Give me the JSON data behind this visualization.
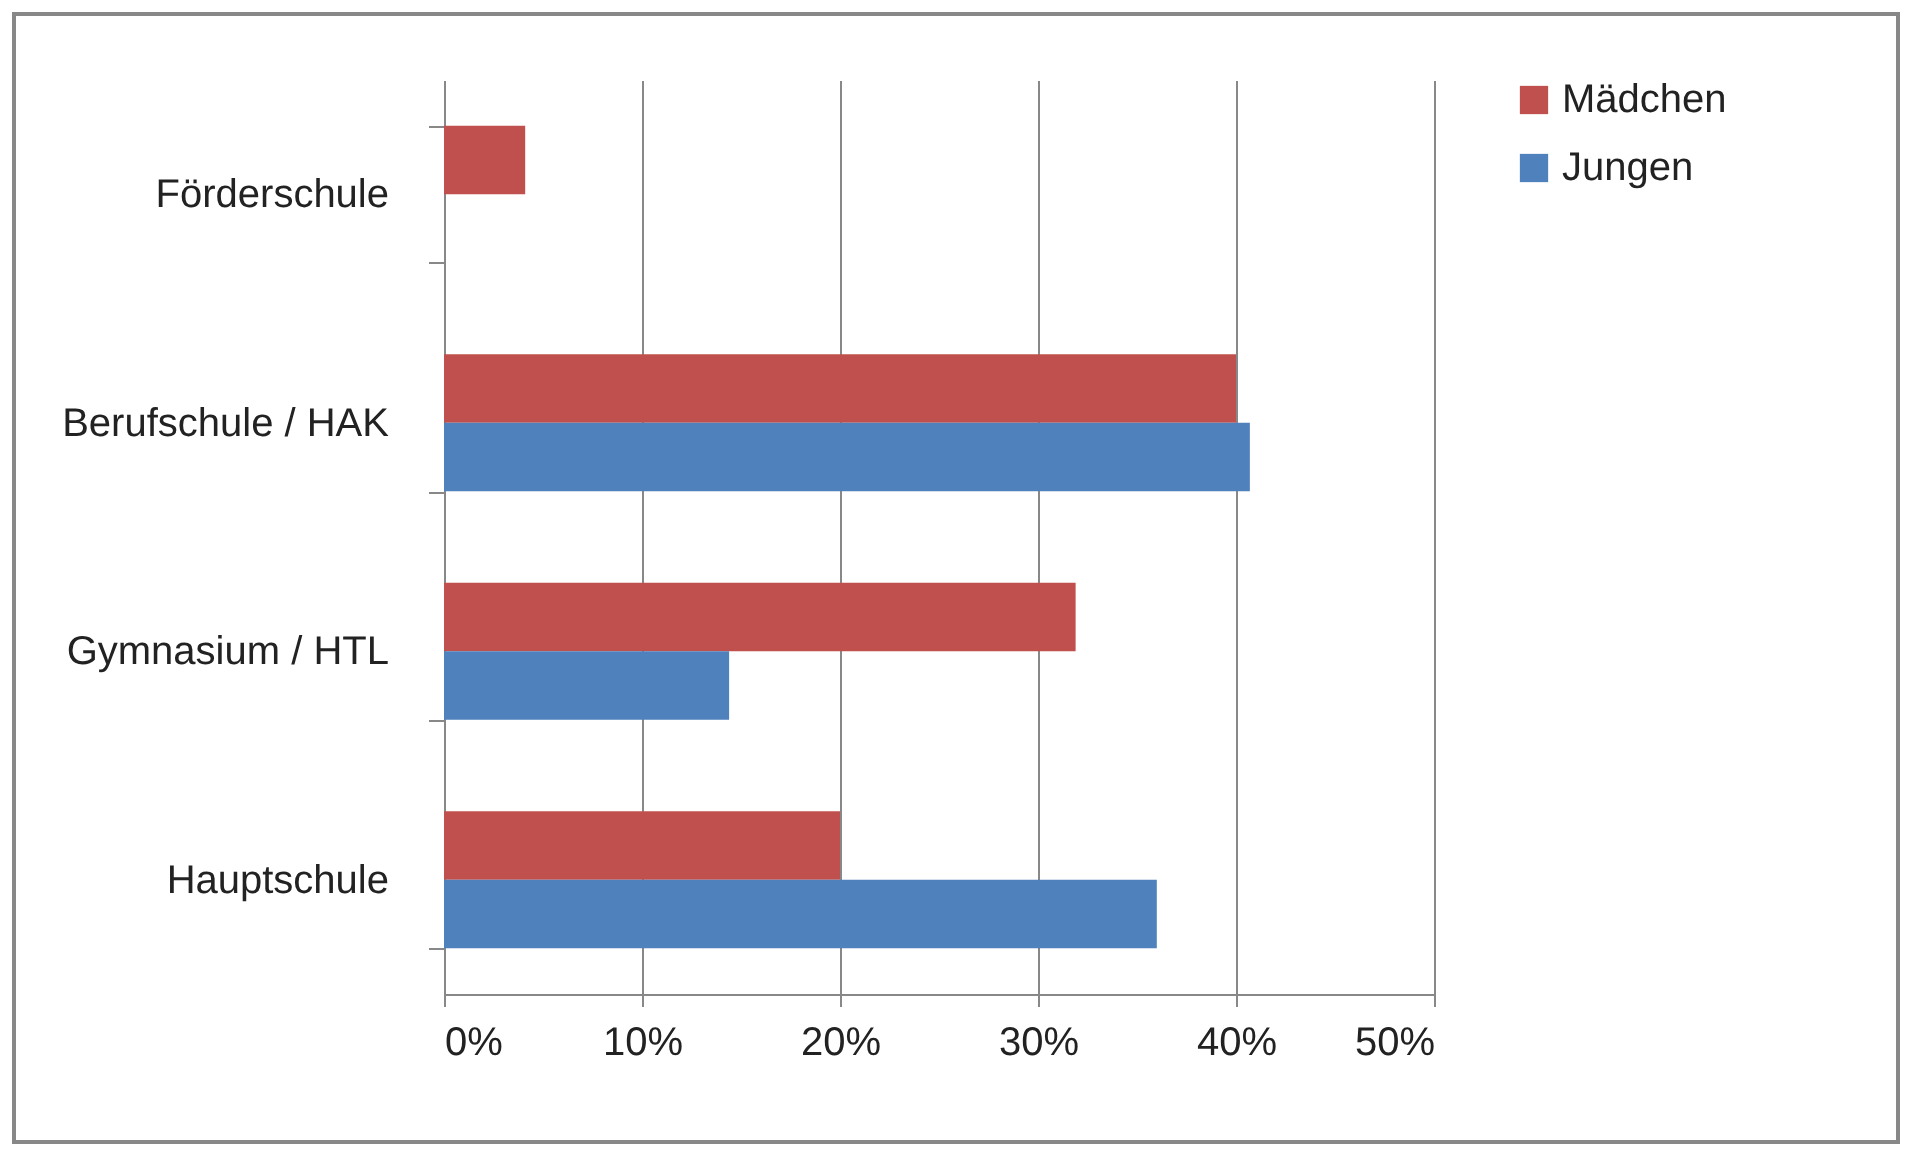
{
  "chart_data": {
    "type": "bar",
    "orientation": "horizontal",
    "categories": [
      "Förderschule",
      "Berufschule / HAK",
      "Gymnasium / HTL",
      "Hauptschule"
    ],
    "series": [
      {
        "name": "Mädchen",
        "color": "#c0504d",
        "values": [
          4.1,
          40,
          31.9,
          20
        ]
      },
      {
        "name": "Jungen",
        "color": "#4f81bd",
        "values": [
          0,
          40.7,
          14.4,
          36
        ]
      }
    ],
    "xlim": [
      0,
      50
    ],
    "xticks": [
      {
        "value": 0,
        "label": "0%"
      },
      {
        "value": 10,
        "label": "10%"
      },
      {
        "value": 20,
        "label": "20%"
      },
      {
        "value": 30,
        "label": "30%"
      },
      {
        "value": 40,
        "label": "40%"
      },
      {
        "value": 50,
        "label": "50%"
      }
    ],
    "grid": "x",
    "legend": "right"
  }
}
